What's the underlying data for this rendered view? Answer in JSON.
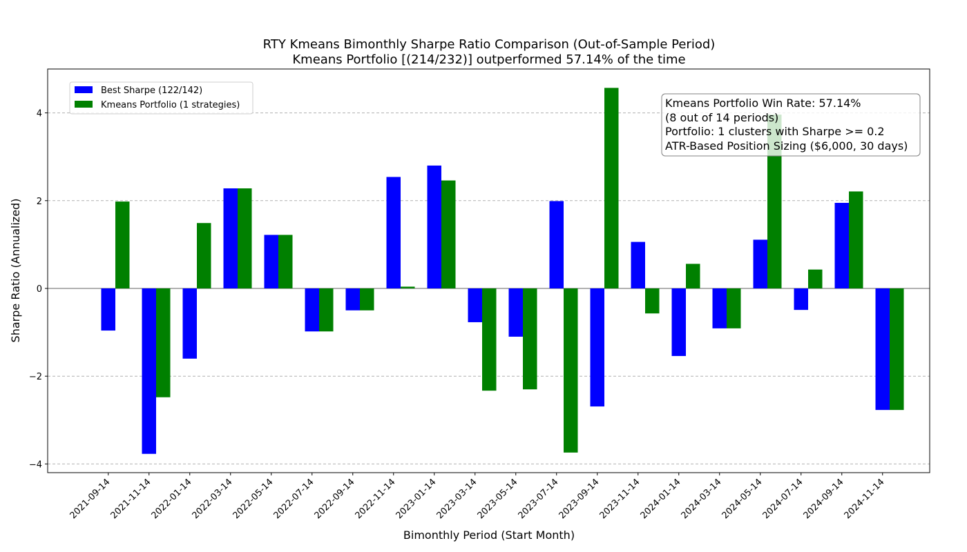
{
  "chart_data": {
    "type": "bar",
    "title": "RTY Kmeans Bimonthly Sharpe Ratio Comparison (Out-of-Sample Period)",
    "subtitle": "Kmeans Portfolio [(214/232)] outperformed 57.14% of the time",
    "xlabel": "Bimonthly Period (Start Month)",
    "ylabel": "Sharpe Ratio (Annualized)",
    "ylim": [
      -4.2,
      5.0
    ],
    "yticks": [
      -4,
      -2,
      0,
      2,
      4
    ],
    "ytick_labels": [
      "−4",
      "−2",
      "0",
      "2",
      "4"
    ],
    "grid": "horizontal dashed",
    "legend_position": "top-left",
    "categories": [
      "2021-09-14",
      "2021-11-14",
      "2022-01-14",
      "2022-03-14",
      "2022-05-14",
      "2022-07-14",
      "2022-09-14",
      "2022-11-14",
      "2023-01-14",
      "2023-03-14",
      "2023-05-14",
      "2023-07-14",
      "2023-09-14",
      "2023-11-14",
      "2024-01-14",
      "2024-03-14",
      "2024-05-14",
      "2024-07-14",
      "2024-09-14",
      "2024-11-14"
    ],
    "series": [
      {
        "name": "Best Sharpe (122/142)",
        "color": "#0000ff",
        "values": [
          -0.96,
          -3.77,
          -1.6,
          2.28,
          1.22,
          -0.98,
          -0.5,
          2.54,
          2.8,
          -0.77,
          -1.1,
          1.99,
          -2.69,
          1.06,
          -1.54,
          -0.91,
          1.11,
          -0.49,
          1.95,
          -2.77
        ]
      },
      {
        "name": "Kmeans Portfolio (1 strategies)",
        "color": "#008000",
        "values": [
          1.98,
          -2.48,
          1.49,
          2.28,
          1.22,
          -0.98,
          -0.5,
          0.04,
          2.46,
          -2.33,
          -2.3,
          -3.74,
          4.57,
          -0.57,
          0.56,
          -0.91,
          3.96,
          0.43,
          2.21,
          -2.77
        ]
      }
    ],
    "annotation": [
      "Kmeans Portfolio Win Rate: 57.14%",
      "(8 out of 14 periods)",
      "Portfolio: 1 clusters with Sharpe >= 0.2",
      "ATR-Based Position Sizing ($6,000, 30 days)"
    ]
  }
}
